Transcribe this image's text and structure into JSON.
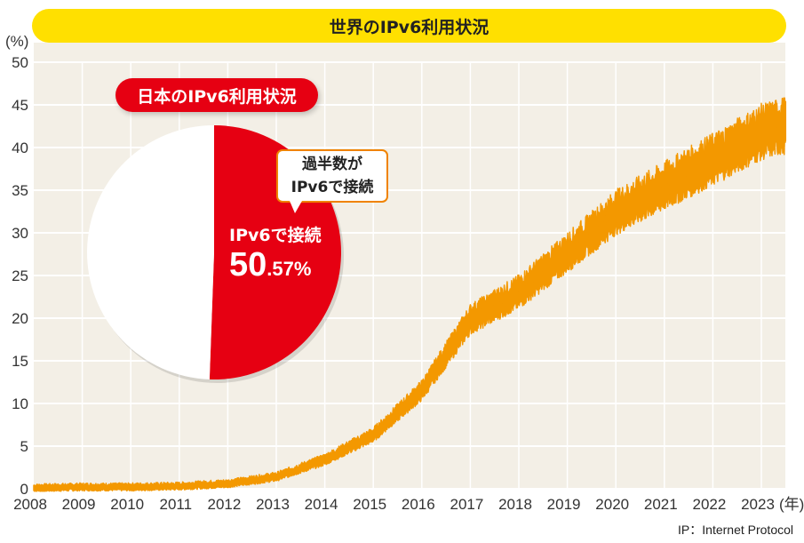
{
  "chart_data": [
    {
      "type": "area",
      "title": "世界のIPv6利用状況",
      "ylabel": "(%)",
      "xlabel": "(年)",
      "ylim": [
        0,
        50
      ],
      "yticks": [
        0,
        5,
        10,
        15,
        20,
        25,
        30,
        35,
        40,
        45,
        50
      ],
      "xticks": [
        "2008",
        "2009",
        "2010",
        "2011",
        "2012",
        "2013",
        "2014",
        "2015",
        "2016",
        "2017",
        "2018",
        "2019",
        "2020",
        "2021",
        "2022",
        "2023"
      ],
      "x": [
        2008,
        2009,
        2010,
        2011,
        2012,
        2013,
        2014,
        2015,
        2016,
        2017,
        2018,
        2019,
        2020,
        2021,
        2022,
        2023,
        2023.5
      ],
      "values": [
        0.1,
        0.2,
        0.2,
        0.3,
        0.6,
        1.4,
        3.4,
        6.3,
        11.5,
        19.8,
        23.0,
        27.6,
        32.3,
        35.4,
        38.5,
        41.7,
        42.5
      ],
      "grid": true,
      "color": "#f39800"
    },
    {
      "type": "pie",
      "title": "日本のIPv6利用状況",
      "slices": [
        {
          "name": "IPv6で接続",
          "value": 50.57,
          "color": "#e60012"
        },
        {
          "value": 49.43,
          "color": "#ffffff"
        }
      ],
      "label_integer": "50",
      "label_decimal": ".57%",
      "callout_line1": "過半数が",
      "callout_line2": "IPv6で接続"
    }
  ],
  "note": "IP：Internet Protocol",
  "colors": {
    "background": "#f3efe6",
    "title_bar": "#ffe000",
    "accent": "#e60012",
    "line": "#f39800"
  }
}
